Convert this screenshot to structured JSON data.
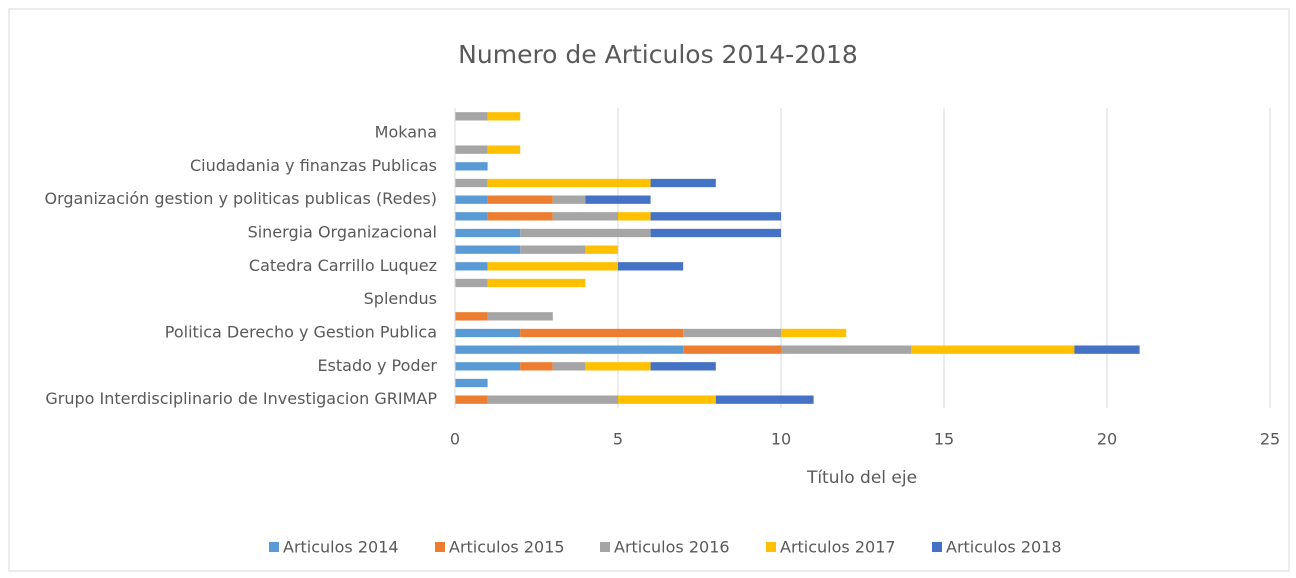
{
  "chart_data": {
    "type": "stacked_barh",
    "title": "Numero de Articulos 2014-2018",
    "xlabel": "Título del eje",
    "categories": [
      "Grupo Interdisciplinario de Investigacion GRIMAP",
      null,
      "Estado y Poder",
      null,
      "Politica Derecho y Gestion Publica",
      null,
      "Splendus",
      null,
      "Catedra Carrillo Luquez",
      null,
      "Sinergia Organizacional",
      null,
      "Organización gestion y politicas publicas (Redes)",
      null,
      "Ciudadania y finanzas Publicas",
      null,
      "Mokana",
      null
    ],
    "series": [
      {
        "name": "Articulos 2014",
        "color": "#5b9bd5",
        "values": [
          0,
          1,
          2,
          7,
          2,
          0,
          0,
          0,
          1,
          2,
          2,
          1,
          1,
          0,
          1,
          0,
          0,
          0
        ]
      },
      {
        "name": "Articulos 2015",
        "color": "#ed7d31",
        "values": [
          1,
          0,
          1,
          3,
          5,
          1,
          0,
          0,
          0,
          0,
          0,
          2,
          2,
          0,
          0,
          0,
          0,
          0
        ]
      },
      {
        "name": "Articulos 2016",
        "color": "#a5a5a5",
        "values": [
          4,
          0,
          1,
          4,
          3,
          2,
          0,
          1,
          0,
          2,
          4,
          2,
          1,
          1,
          0,
          1,
          0,
          1
        ]
      },
      {
        "name": "Articulos 2017",
        "color": "#ffc000",
        "values": [
          3,
          0,
          2,
          5,
          2,
          0,
          0,
          3,
          4,
          1,
          0,
          1,
          0,
          5,
          0,
          1,
          0,
          1
        ]
      },
      {
        "name": "Articulos 2018",
        "color": "#4472c4",
        "values": [
          3,
          0,
          2,
          2,
          0,
          0,
          0,
          0,
          2,
          0,
          4,
          4,
          2,
          2,
          0,
          0,
          0,
          0
        ]
      }
    ],
    "xlim": [
      0,
      25
    ],
    "xticks": [
      0,
      5,
      10,
      15,
      20,
      25
    ],
    "grid": true,
    "legend": "bottom"
  }
}
